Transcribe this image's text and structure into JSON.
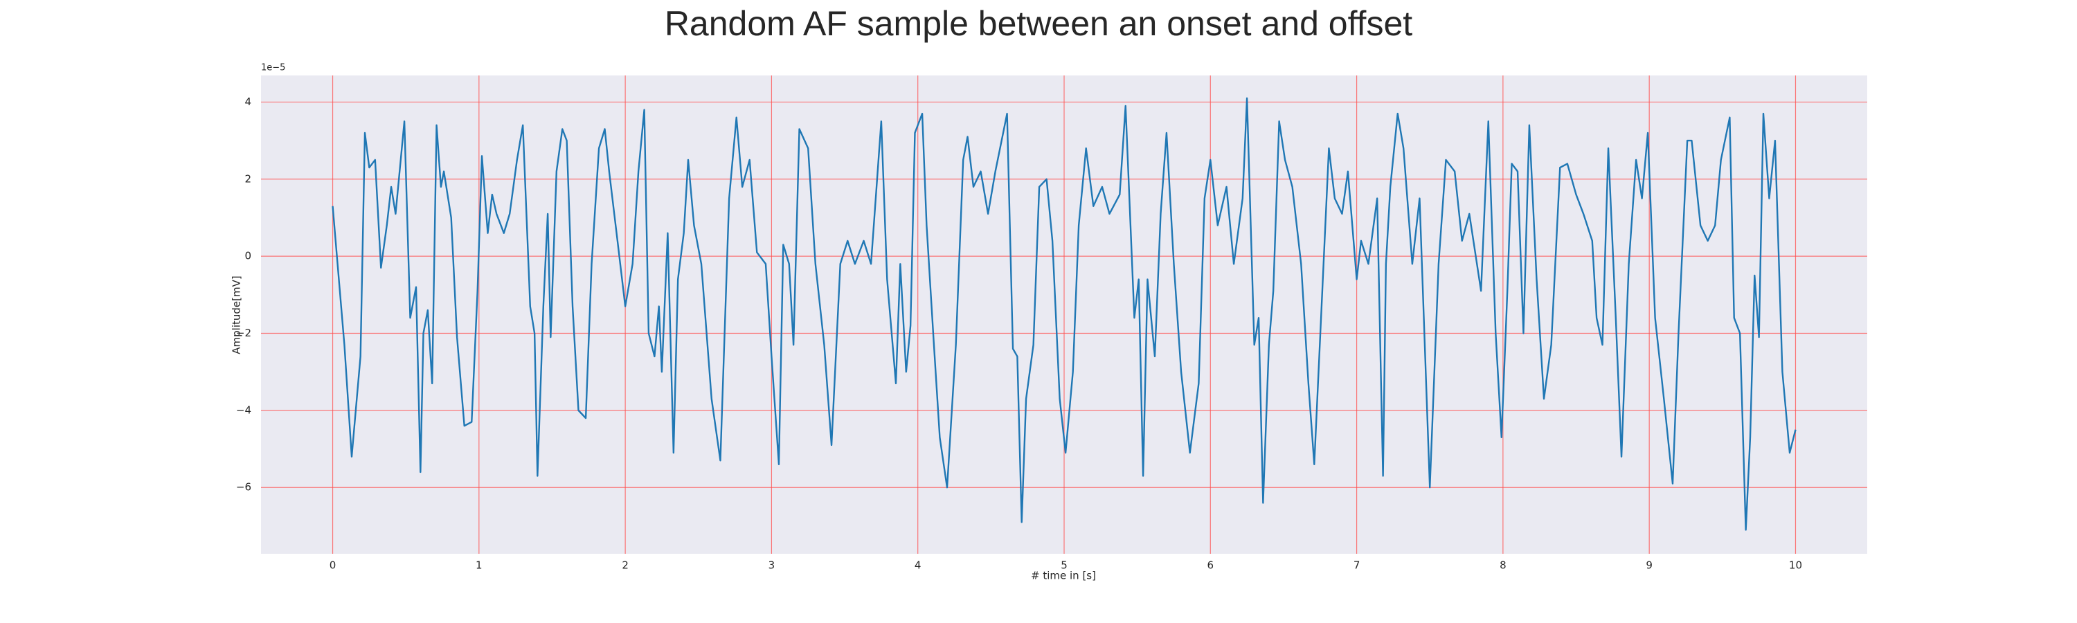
{
  "chart_data": {
    "type": "line",
    "title": "Random AF sample between an onset and offset",
    "x_label": "# time in [s]",
    "y_label": "Amplitude[mV]",
    "y_offset_label": "1e−5",
    "xlim": [
      -0.49,
      10.49
    ],
    "ylim": [
      -7.72,
      4.69
    ],
    "xticks": [
      0,
      1,
      2,
      3,
      4,
      5,
      6,
      7,
      8,
      9,
      10
    ],
    "yticks": [
      {
        "value": -6,
        "label": "−6"
      },
      {
        "value": -4,
        "label": "−4"
      },
      {
        "value": -2,
        "label": "−2"
      },
      0,
      2,
      4
    ],
    "grid": true,
    "grid_color": "#ff4d4d",
    "background": "#eaeaf2",
    "x": [
      0,
      0.08,
      0.13,
      0.19,
      0.22,
      0.25,
      0.29,
      0.33,
      0.37,
      0.4,
      0.43,
      0.49,
      0.53,
      0.57,
      0.6,
      0.62,
      0.65,
      0.68,
      0.71,
      0.74,
      0.76,
      0.81,
      0.85,
      0.9,
      0.95,
      0.99,
      1.02,
      1.06,
      1.09,
      1.12,
      1.17,
      1.21,
      1.26,
      1.3,
      1.35,
      1.38,
      1.4,
      1.44,
      1.47,
      1.49,
      1.53,
      1.57,
      1.6,
      1.64,
      1.68,
      1.73,
      1.77,
      1.82,
      1.86,
      1.89,
      1.95,
      2.0,
      2.05,
      2.09,
      2.13,
      2.16,
      2.2,
      2.23,
      2.25,
      2.29,
      2.33,
      2.36,
      2.4,
      2.43,
      2.47,
      2.52,
      2.59,
      2.65,
      2.71,
      2.76,
      2.8,
      2.85,
      2.9,
      2.96,
      3.0,
      3.05,
      3.08,
      3.12,
      3.15,
      3.19,
      3.25,
      3.3,
      3.36,
      3.41,
      3.47,
      3.52,
      3.57,
      3.63,
      3.68,
      3.75,
      3.79,
      3.85,
      3.88,
      3.92,
      3.95,
      3.98,
      4.03,
      4.06,
      4.11,
      4.15,
      4.2,
      4.26,
      4.31,
      4.34,
      4.38,
      4.43,
      4.48,
      4.53,
      4.61,
      4.65,
      4.68,
      4.71,
      4.74,
      4.79,
      4.83,
      4.88,
      4.92,
      4.97,
      5.01,
      5.06,
      5.1,
      5.15,
      5.2,
      5.26,
      5.31,
      5.38,
      5.42,
      5.48,
      5.51,
      5.54,
      5.57,
      5.62,
      5.66,
      5.7,
      5.75,
      5.8,
      5.86,
      5.92,
      5.96,
      6.0,
      6.05,
      6.11,
      6.16,
      6.22,
      6.25,
      6.3,
      6.33,
      6.36,
      6.4,
      6.43,
      6.47,
      6.51,
      6.56,
      6.62,
      6.67,
      6.71,
      6.76,
      6.81,
      6.85,
      6.9,
      6.94,
      7.0,
      7.03,
      7.08,
      7.14,
      7.18,
      7.2,
      7.23,
      7.28,
      7.32,
      7.38,
      7.43,
      7.5,
      7.56,
      7.61,
      7.67,
      7.72,
      7.77,
      7.85,
      7.9,
      7.95,
      7.99,
      8.03,
      8.06,
      8.1,
      8.14,
      8.18,
      8.23,
      8.28,
      8.33,
      8.39,
      8.44,
      8.5,
      8.55,
      8.61,
      8.64,
      8.68,
      8.72,
      8.77,
      8.81,
      8.86,
      8.91,
      8.95,
      8.99,
      9.04,
      9.1,
      9.16,
      9.2,
      9.26,
      9.29,
      9.35,
      9.4,
      9.45,
      9.49,
      9.55,
      9.58,
      9.62,
      9.66,
      9.69,
      9.72,
      9.75,
      9.78,
      9.82,
      9.86,
      9.91,
      9.96,
      10.0
    ],
    "series": [
      {
        "color": "#1f77b4",
        "values": [
          1.3,
          -2.3,
          -5.2,
          -2.6,
          3.2,
          2.3,
          2.5,
          -0.3,
          0.8,
          1.8,
          1.1,
          3.5,
          -1.6,
          -0.8,
          -5.6,
          -2.0,
          -1.4,
          -3.3,
          3.4,
          1.8,
          2.2,
          1.0,
          -2.1,
          -4.4,
          -4.3,
          -0.9,
          2.6,
          0.6,
          1.6,
          1.1,
          0.6,
          1.1,
          2.5,
          3.4,
          -1.3,
          -2.0,
          -5.7,
          -1.3,
          1.1,
          -2.1,
          2.2,
          3.3,
          3.0,
          -1.3,
          -4.0,
          -4.2,
          -0.2,
          2.8,
          3.3,
          2.2,
          0.3,
          -1.3,
          -0.2,
          2.2,
          3.8,
          -2.0,
          -2.6,
          -1.3,
          -3.0,
          0.6,
          -5.1,
          -0.6,
          0.6,
          2.5,
          0.8,
          -0.2,
          -3.7,
          -5.3,
          1.5,
          3.6,
          1.8,
          2.5,
          0.1,
          -0.2,
          -2.6,
          -5.4,
          0.3,
          -0.2,
          -2.3,
          3.3,
          2.8,
          -0.2,
          -2.3,
          -4.9,
          -0.2,
          0.4,
          -0.2,
          0.4,
          -0.2,
          3.5,
          -0.6,
          -3.3,
          -0.2,
          -3.0,
          -1.8,
          3.2,
          3.7,
          0.8,
          -2.3,
          -4.7,
          -6.0,
          -2.3,
          2.5,
          3.1,
          1.8,
          2.2,
          1.1,
          2.2,
          3.7,
          -2.4,
          -2.6,
          -6.9,
          -3.7,
          -2.3,
          1.8,
          2.0,
          0.4,
          -3.7,
          -5.1,
          -3.0,
          0.8,
          2.8,
          1.3,
          1.8,
          1.1,
          1.6,
          3.9,
          -1.6,
          -0.6,
          -5.7,
          -0.6,
          -2.6,
          1.1,
          3.2,
          -0.2,
          -3.0,
          -5.1,
          -3.3,
          1.5,
          2.5,
          0.8,
          1.8,
          -0.2,
          1.5,
          4.1,
          -2.3,
          -1.6,
          -6.4,
          -2.3,
          -0.9,
          3.5,
          2.5,
          1.8,
          -0.2,
          -3.3,
          -5.4,
          -1.3,
          2.8,
          1.5,
          1.1,
          2.2,
          -0.6,
          0.4,
          -0.2,
          1.5,
          -5.7,
          -0.2,
          1.8,
          3.7,
          2.8,
          -0.2,
          1.5,
          -6.0,
          -0.2,
          2.5,
          2.2,
          0.4,
          1.1,
          -0.9,
          3.5,
          -2.0,
          -4.7,
          -0.9,
          2.4,
          2.2,
          -2.0,
          3.4,
          -0.6,
          -3.7,
          -2.3,
          2.3,
          2.4,
          1.6,
          1.1,
          0.4,
          -1.6,
          -2.3,
          2.8,
          -1.5,
          -5.2,
          -0.2,
          2.5,
          1.5,
          3.2,
          -1.6,
          -3.7,
          -5.9,
          -2.0,
          3.0,
          3.0,
          0.8,
          0.4,
          0.8,
          2.5,
          3.6,
          -1.6,
          -2.0,
          -7.1,
          -4.7,
          -0.5,
          -2.1,
          3.7,
          1.5,
          3.0,
          -3.0,
          -5.1,
          -4.5
        ]
      }
    ]
  }
}
